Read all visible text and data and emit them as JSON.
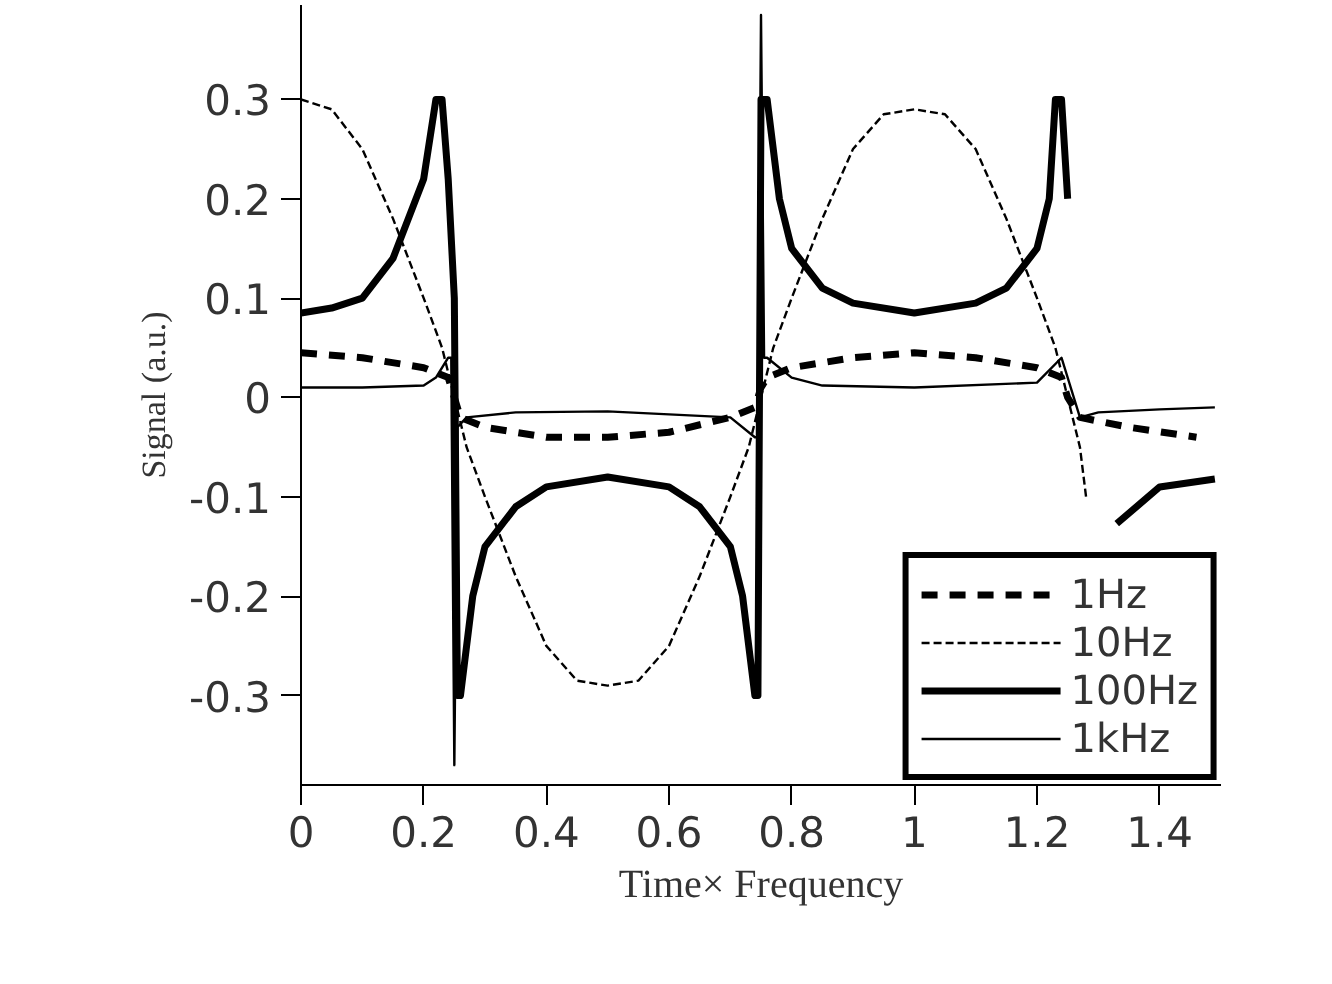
{
  "chart_data": {
    "type": "line",
    "xlabel": "Time× Frequency",
    "ylabel": "Signal (a.u.)",
    "xlim": [
      0,
      1.5
    ],
    "ylim": [
      -0.39,
      0.395
    ],
    "xticks": [
      0,
      0.2,
      0.4,
      0.6,
      0.8,
      1,
      1.2,
      1.4
    ],
    "yticks": [
      -0.3,
      -0.2,
      -0.1,
      0,
      0.1,
      0.2,
      0.3
    ],
    "grid": false,
    "legend": "bottom right",
    "marker": "none",
    "series": [
      {
        "name": "1Hz",
        "color": "#000000",
        "line_style": "dashed",
        "x": [
          0,
          0.1,
          0.2,
          0.24,
          0.25,
          0.26,
          0.3,
          0.4,
          0.5,
          0.6,
          0.7,
          0.74,
          0.75,
          0.76,
          0.8,
          0.9,
          1.0,
          1.1,
          1.2,
          1.24,
          1.25,
          1.27,
          1.35,
          1.46
        ],
        "values": [
          0.045,
          0.04,
          0.03,
          0.02,
          0,
          -0.02,
          -0.03,
          -0.04,
          -0.04,
          -0.035,
          -0.02,
          -0.01,
          0.01,
          0.02,
          0.03,
          0.04,
          0.045,
          0.04,
          0.03,
          0.02,
          0,
          -0.02,
          -0.03,
          -0.04
        ]
      },
      {
        "name": "10Hz",
        "color": "#000000",
        "line_style": "dashed",
        "x": [
          0,
          0.05,
          0.1,
          0.15,
          0.2,
          0.23,
          0.25,
          0.27,
          0.3,
          0.35,
          0.4,
          0.45,
          0.5,
          0.55,
          0.6,
          0.65,
          0.7,
          0.73,
          0.75,
          0.77,
          0.8,
          0.85,
          0.9,
          0.95,
          1.0,
          1.05,
          1.1,
          1.15,
          1.2,
          1.23,
          1.25,
          1.27,
          1.28
        ],
        "values": [
          0.3,
          0.29,
          0.25,
          0.18,
          0.1,
          0.05,
          0,
          -0.05,
          -0.1,
          -0.18,
          -0.25,
          -0.285,
          -0.29,
          -0.285,
          -0.25,
          -0.18,
          -0.1,
          -0.05,
          0,
          0.05,
          0.1,
          0.18,
          0.25,
          0.285,
          0.29,
          0.285,
          0.25,
          0.18,
          0.1,
          0.05,
          0,
          -0.05,
          -0.1
        ]
      },
      {
        "name": "100Hz",
        "color": "#000000",
        "line_style": "solid",
        "x": [
          0,
          0.05,
          0.1,
          0.15,
          0.2,
          0.22,
          0.23,
          0.24,
          0.25,
          0.255,
          0.26,
          0.28,
          0.3,
          0.35,
          0.4,
          0.5,
          0.6,
          0.65,
          0.7,
          0.72,
          0.74,
          0.745,
          0.75,
          0.76,
          0.78,
          0.8,
          0.85,
          0.9,
          1.0,
          1.1,
          1.15,
          1.2,
          1.22,
          1.23,
          1.24,
          1.25,
          1.3,
          1.33,
          1.4,
          1.49
        ],
        "values": [
          0.085,
          0.09,
          0.1,
          0.14,
          0.22,
          0.3,
          0.3,
          0.22,
          0.1,
          -0.3,
          -0.3,
          -0.2,
          -0.15,
          -0.11,
          -0.09,
          -0.08,
          -0.09,
          -0.11,
          -0.15,
          -0.2,
          -0.3,
          -0.3,
          0.3,
          0.3,
          0.2,
          0.15,
          0.11,
          0.095,
          0.085,
          0.095,
          0.11,
          0.15,
          0.2,
          0.3,
          0.3,
          0.2,
          null,
          -0.127,
          -0.09,
          -0.082
        ]
      },
      {
        "name": "1kHz",
        "color": "#000000",
        "line_style": "solid",
        "x": [
          0,
          0.1,
          0.2,
          0.22,
          0.24,
          0.245,
          0.25,
          0.255,
          0.27,
          0.35,
          0.5,
          0.7,
          0.74,
          0.745,
          0.75,
          0.755,
          0.76,
          0.8,
          0.85,
          1.0,
          1.2,
          1.24,
          1.27,
          1.3,
          1.4,
          1.49
        ],
        "values": [
          0.01,
          0.01,
          0.012,
          0.02,
          0.04,
          0.04,
          -0.37,
          -0.03,
          -0.02,
          -0.015,
          -0.014,
          -0.02,
          -0.04,
          -0.04,
          0.385,
          0.04,
          0.04,
          0.02,
          0.012,
          0.01,
          0.015,
          0.04,
          -0.02,
          -0.015,
          -0.012,
          -0.01
        ]
      }
    ]
  }
}
